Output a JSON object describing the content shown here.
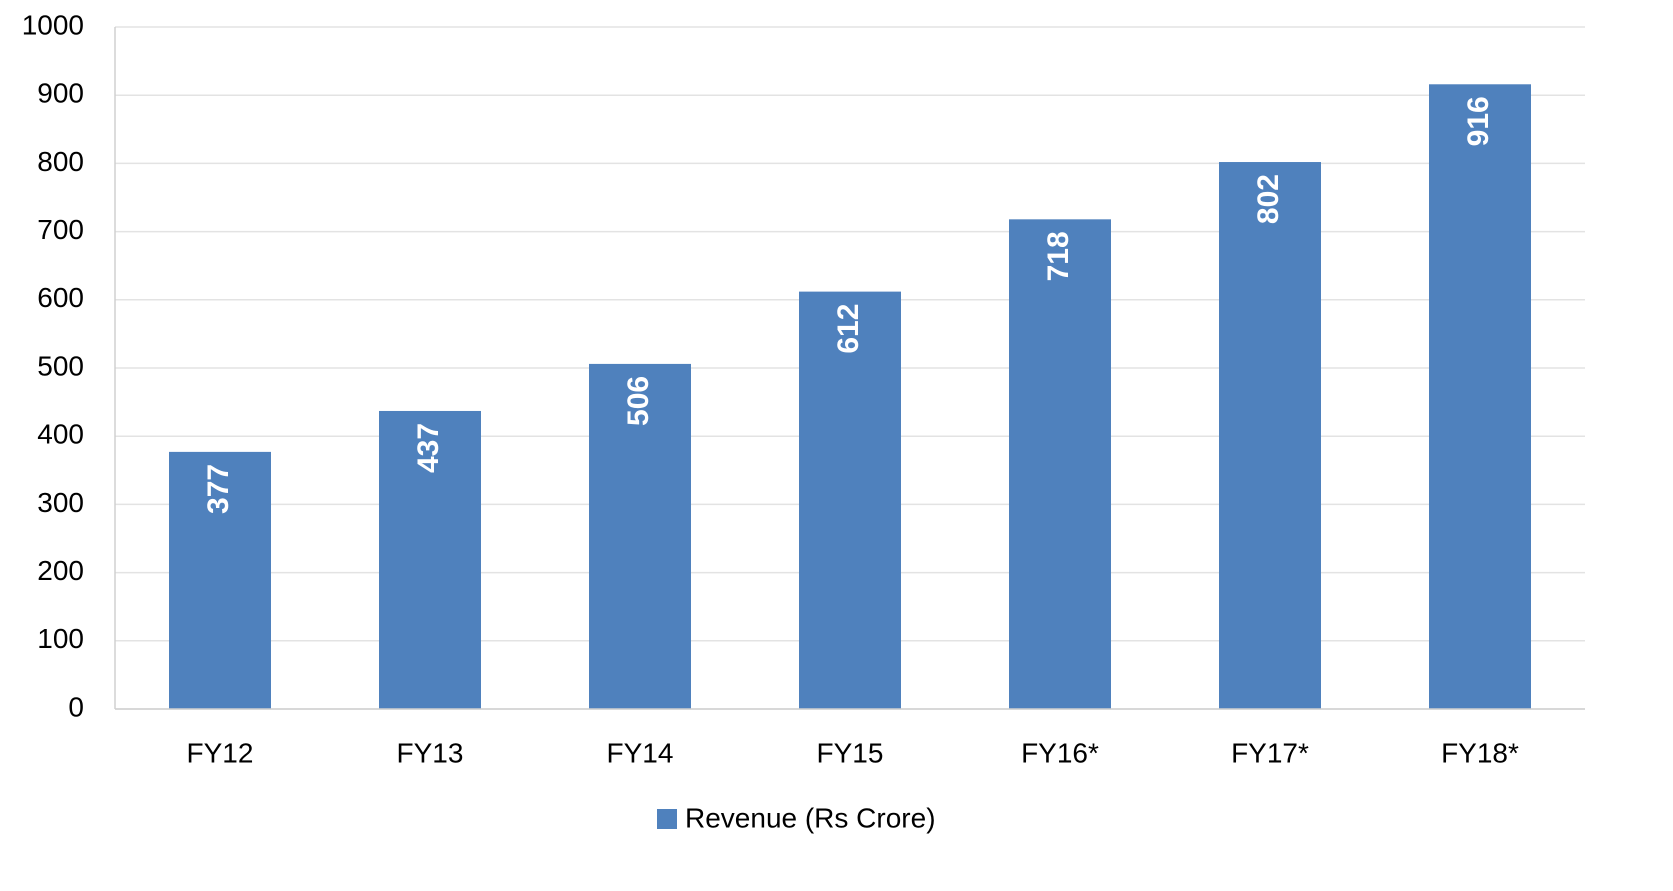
{
  "chart_data": {
    "type": "bar",
    "categories": [
      "FY12",
      "FY13",
      "FY14",
      "FY15",
      "FY16*",
      "FY17*",
      "FY18*"
    ],
    "series": [
      {
        "name": "Revenue (Rs Crore)",
        "color": "#4f81bd",
        "values": [
          377,
          437,
          506,
          612,
          718,
          802,
          916
        ]
      }
    ],
    "ylim": [
      0,
      1000
    ],
    "yticks": [
      0,
      100,
      200,
      300,
      400,
      500,
      600,
      700,
      800,
      900,
      1000
    ],
    "grid": true,
    "legend": "bottom",
    "data_labels": true
  }
}
